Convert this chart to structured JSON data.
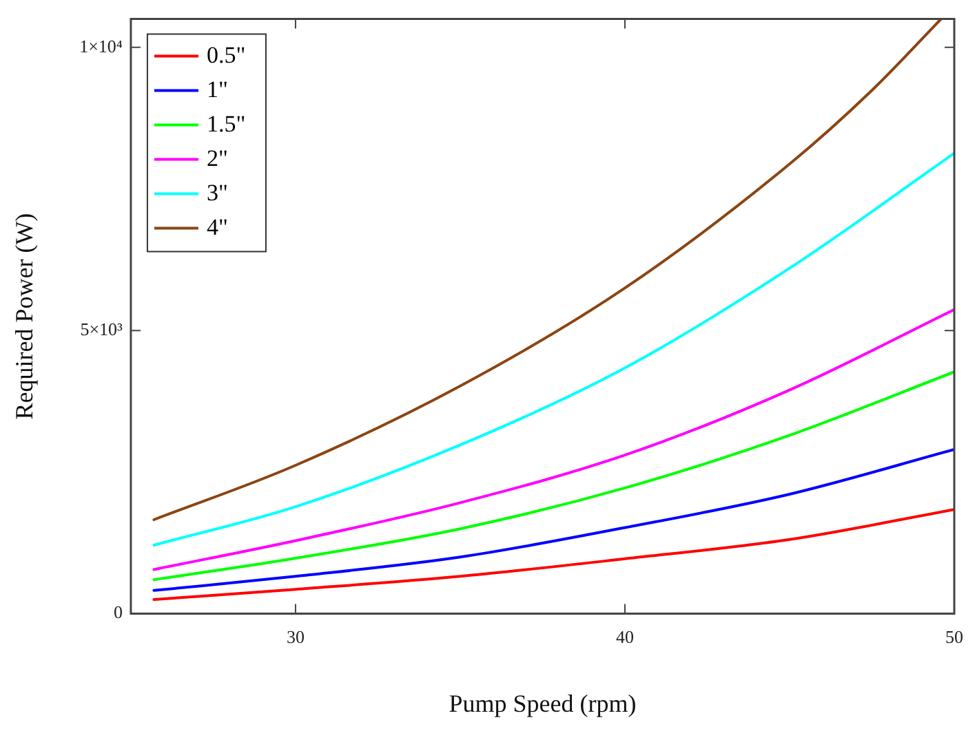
{
  "chart_data": {
    "type": "line",
    "xlabel": "Pump Speed (rpm)",
    "ylabel": "Required Power (W)",
    "xlim": [
      25,
      50
    ],
    "xticks": [
      30,
      40,
      50
    ],
    "ylim": [
      0,
      10500
    ],
    "yticks": [
      {
        "value": 0,
        "label": "0"
      },
      {
        "value": 5000,
        "label": "5×10³"
      },
      {
        "value": 10000,
        "label": "1×10⁴"
      }
    ],
    "grid": false,
    "legend": "top left",
    "marker": "none",
    "line_style": "solid",
    "series": [
      {
        "name": "0.5\"",
        "color": "#ff0000",
        "x": [
          25.7,
          30,
          35,
          40,
          45,
          50
        ],
        "values": [
          250,
          430,
          660,
          970,
          1310,
          1840
        ]
      },
      {
        "name": "1\"",
        "color": "#0000ff",
        "x": [
          25.7,
          30,
          35,
          40,
          45,
          50
        ],
        "values": [
          410,
          660,
          1000,
          1520,
          2110,
          2900
        ]
      },
      {
        "name": "1.5\"",
        "color": "#00ff00",
        "x": [
          25.7,
          30,
          35,
          40,
          45,
          50
        ],
        "values": [
          600,
          980,
          1500,
          2220,
          3150,
          4270
        ]
      },
      {
        "name": "2\"",
        "color": "#ff00ff",
        "x": [
          25.7,
          30,
          35,
          40,
          45,
          50
        ],
        "values": [
          780,
          1290,
          1960,
          2800,
          3950,
          5370
        ]
      },
      {
        "name": "3\"",
        "color": "#00ffff",
        "x": [
          25.7,
          30,
          35,
          40,
          45,
          50
        ],
        "values": [
          1210,
          1890,
          2980,
          4340,
          6100,
          8130
        ]
      },
      {
        "name": "4\"",
        "color": "#8b4513",
        "x": [
          25.7,
          30,
          35,
          40,
          45,
          47.5,
          49.6
        ],
        "values": [
          1660,
          2620,
          4020,
          5750,
          7940,
          9240,
          10500
        ]
      }
    ]
  }
}
